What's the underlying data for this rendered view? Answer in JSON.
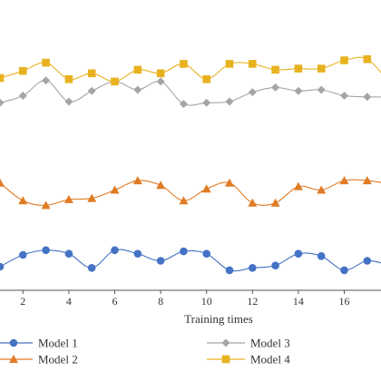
{
  "chart_data": {
    "type": "line",
    "title": "",
    "xlabel": "Training times",
    "ylabel": "",
    "xlim": [
      1,
      17.6
    ],
    "ylim": [
      0,
      1
    ],
    "x_ticks": [
      2,
      4,
      6,
      8,
      10,
      12,
      14,
      16
    ],
    "x": [
      1,
      2,
      3,
      4,
      5,
      6,
      7,
      8,
      9,
      10,
      11,
      12,
      13,
      14,
      15,
      16,
      17,
      18
    ],
    "grid": false,
    "smooth": true,
    "legend_position": "bottom",
    "series": [
      {
        "name": "Model 1",
        "color": "#4472c4",
        "marker": "circle",
        "values": [
          0.1,
          0.15,
          0.17,
          0.155,
          0.095,
          0.17,
          0.155,
          0.125,
          0.165,
          0.155,
          0.085,
          0.095,
          0.105,
          0.155,
          0.145,
          0.085,
          0.125,
          0.105
        ]
      },
      {
        "name": "Model 2",
        "color": "#e07b24",
        "marker": "triangle",
        "values": [
          0.455,
          0.38,
          0.36,
          0.385,
          0.39,
          0.425,
          0.465,
          0.445,
          0.38,
          0.43,
          0.455,
          0.37,
          0.37,
          0.44,
          0.425,
          0.465,
          0.465,
          0.45
        ]
      },
      {
        "name": "Model 3",
        "color": "#a5a5a5",
        "marker": "diamond",
        "values": [
          0.795,
          0.825,
          0.89,
          0.8,
          0.845,
          0.885,
          0.85,
          0.885,
          0.79,
          0.795,
          0.8,
          0.84,
          0.86,
          0.845,
          0.85,
          0.825,
          0.82,
          0.82
        ]
      },
      {
        "name": "Model 4",
        "color": "#e8b21f",
        "marker": "square",
        "values": [
          0.9,
          0.93,
          0.965,
          0.895,
          0.92,
          0.885,
          0.935,
          0.92,
          0.96,
          0.895,
          0.96,
          0.96,
          0.935,
          0.94,
          0.94,
          0.975,
          0.98,
          0.875
        ]
      }
    ]
  }
}
